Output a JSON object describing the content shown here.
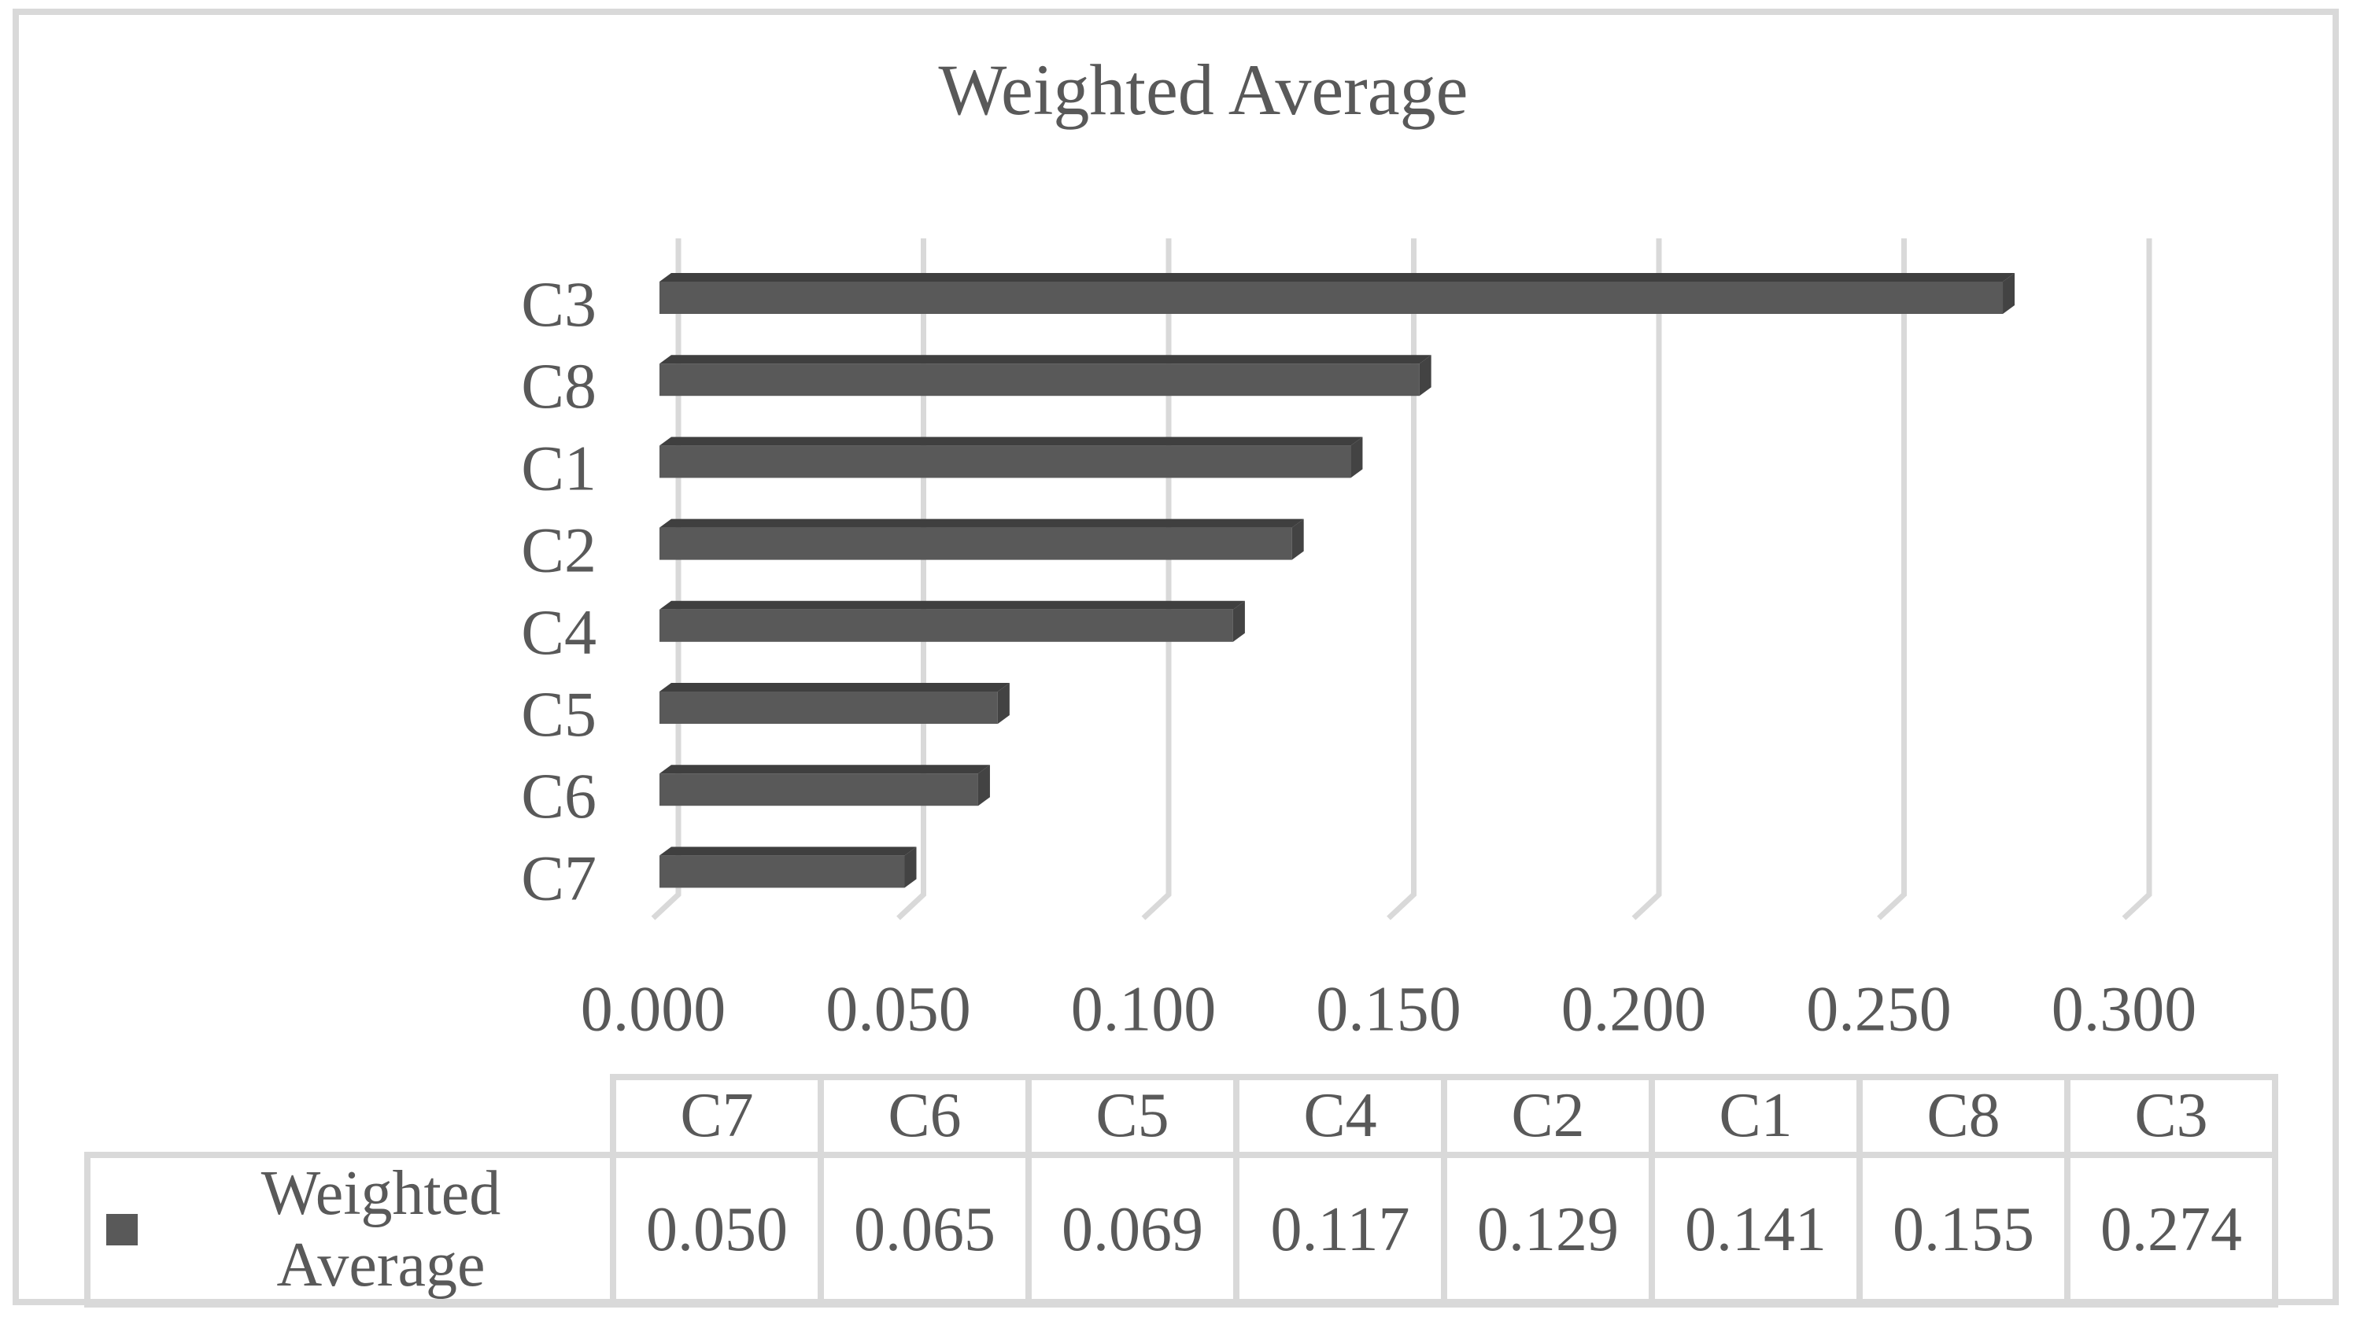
{
  "frame": {
    "border_color": "#d9d9d9",
    "background_color": "#ffffff"
  },
  "chart_data": {
    "type": "bar",
    "orientation": "horizontal",
    "style": "3d",
    "title": "Weighted Average",
    "series_name": "Weighted Average",
    "categories_top_to_bottom": [
      "C3",
      "C8",
      "C1",
      "C2",
      "C4",
      "C5",
      "C6",
      "C7"
    ],
    "values_top_to_bottom": [
      0.274,
      0.155,
      0.141,
      0.129,
      0.117,
      0.069,
      0.065,
      0.05
    ],
    "xlabel": "",
    "ylabel": "",
    "x_axis": {
      "min": 0.0,
      "max": 0.3,
      "tick_interval": 0.05,
      "tick_labels": [
        "0.000",
        "0.050",
        "0.100",
        "0.150",
        "0.200",
        "0.250",
        "0.300"
      ]
    },
    "grid": "vertical",
    "legend_position": "bottom-table",
    "bar_face_color": "#595959",
    "bar_top_color": "#3f3f3f",
    "bar_end_color": "#434343",
    "gridline_color": "#d9d9d9",
    "text_color": "#595959"
  },
  "table": {
    "legend_label": "Weighted Average",
    "legend_marker_color": "#595959",
    "columns": [
      "C7",
      "C6",
      "C5",
      "C4",
      "C2",
      "C1",
      "C8",
      "C3"
    ],
    "values": [
      "0.050",
      "0.065",
      "0.069",
      "0.117",
      "0.129",
      "0.141",
      "0.155",
      "0.274"
    ]
  }
}
